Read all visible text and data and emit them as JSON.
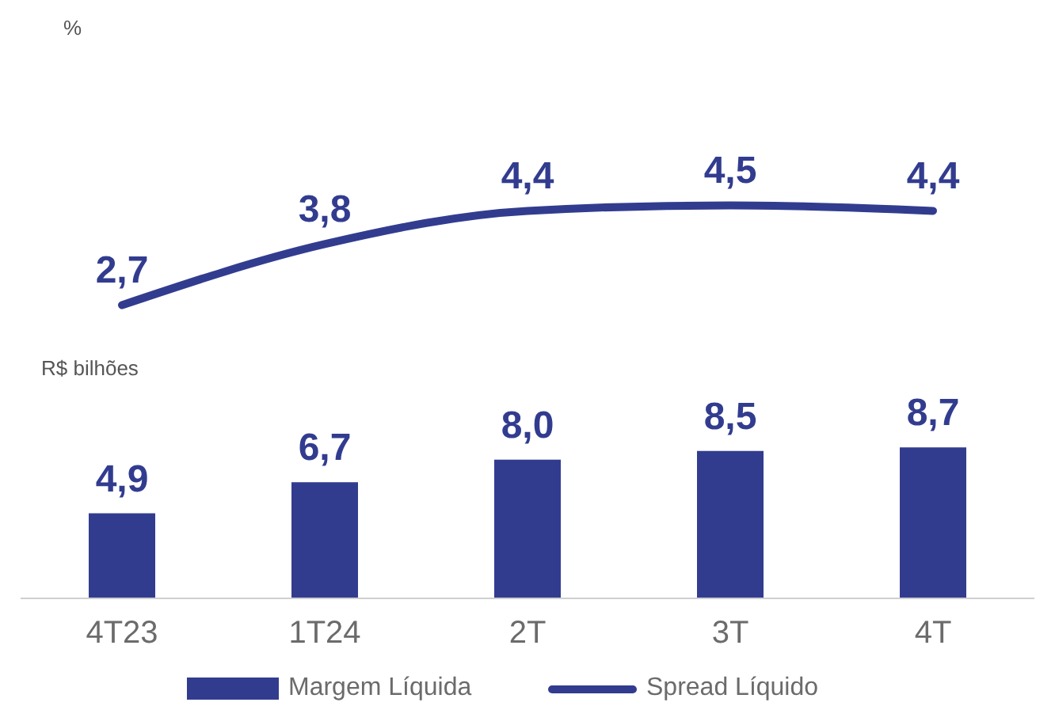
{
  "chart_data": [
    {
      "type": "line",
      "annotations": [
        "%"
      ],
      "categories": [
        null,
        null,
        null,
        null,
        null
      ],
      "series": [
        {
          "name": "Spread Líquido",
          "color": "#323c8f",
          "values": [
            2.7,
            3.8,
            4.4,
            4.5,
            4.4
          ],
          "value_labels": [
            "2,7",
            "3,8",
            "4,4",
            "4,5",
            "4,4"
          ]
        }
      ],
      "legend": "bottom",
      "marker": "none",
      "line_style": "solid",
      "tick_labels": false
    },
    {
      "type": "bar",
      "annotations": [
        "R$ bilhões"
      ],
      "categories": [
        "4T23",
        "1T24",
        "2T",
        "3T",
        "4T"
      ],
      "series": [
        {
          "name": "Margem Líquida",
          "color": "#323c8f",
          "values": [
            4.9,
            6.7,
            8.0,
            8.5,
            8.7
          ],
          "value_labels": [
            "4,9",
            "6,7",
            "8,0",
            "8,5",
            "8,7"
          ]
        }
      ],
      "legend": "bottom",
      "tick_labels": "x"
    }
  ]
}
